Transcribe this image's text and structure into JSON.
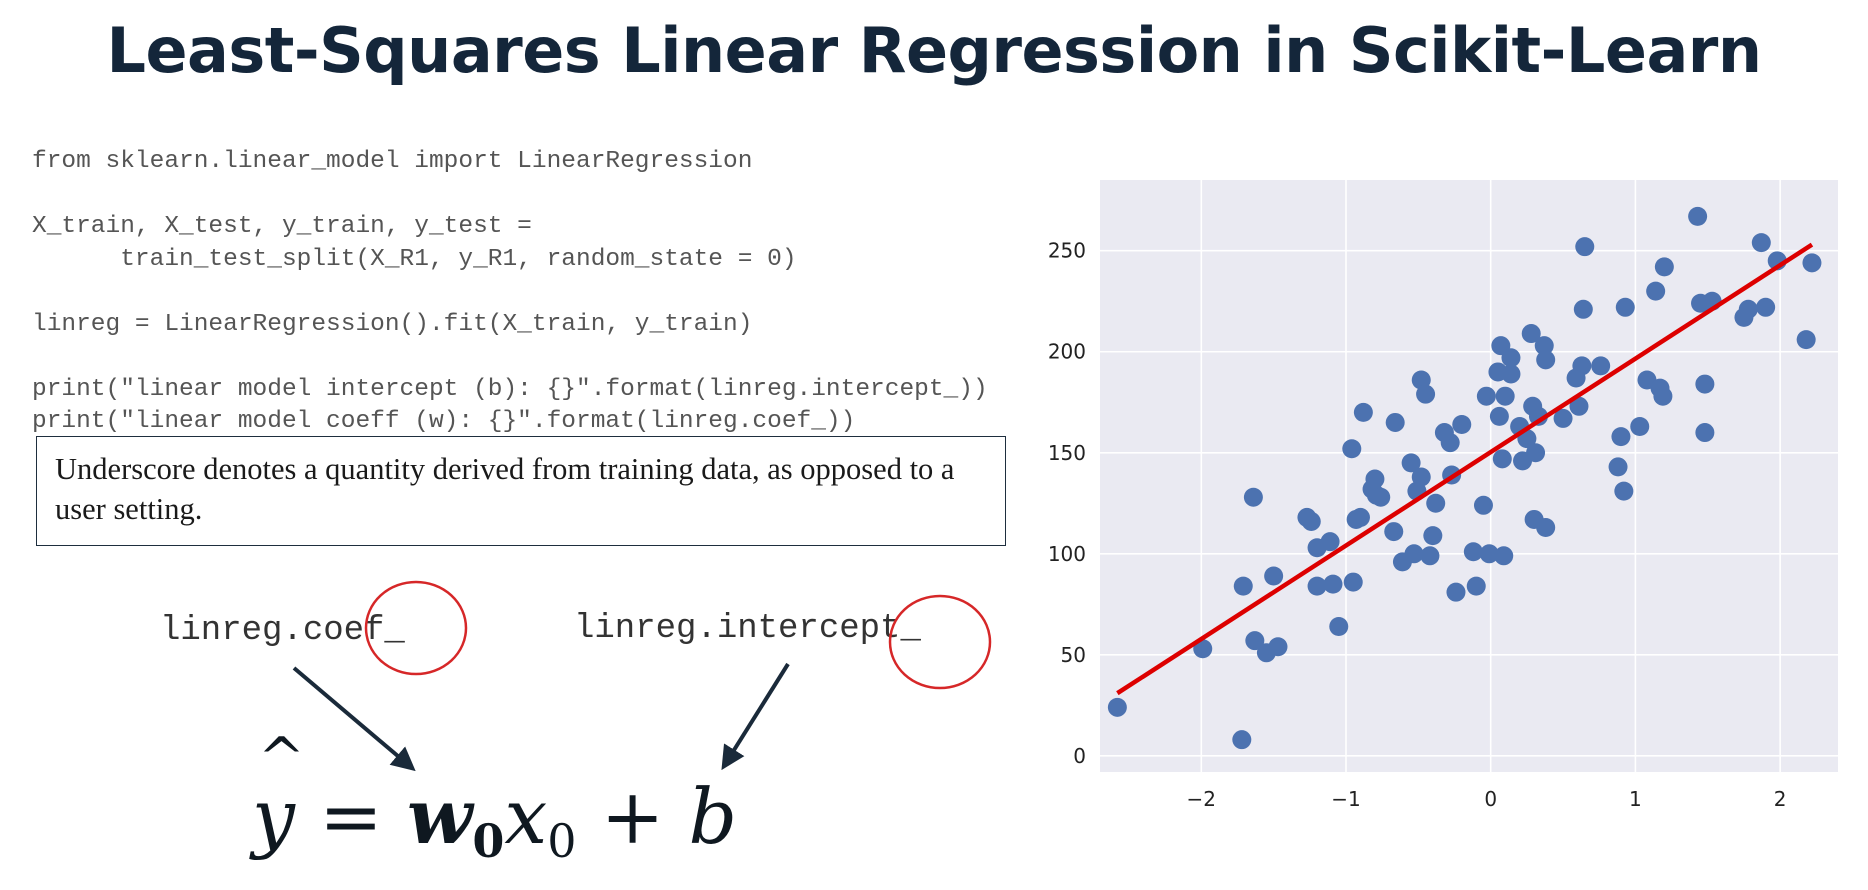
{
  "slide": {
    "title": "Least-Squares Linear Regression in Scikit-Learn",
    "code_lines": [
      "from sklearn.linear_model import LinearRegression",
      "",
      "X_train, X_test, y_train, y_test =",
      "      train_test_split(X_R1, y_R1, random_state = 0)",
      "",
      "linreg = LinearRegression().fit(X_train, y_train)",
      "",
      "print(\"linear model intercept (b): {}\".format(linreg.intercept_))",
      "print(\"linear model coeff (w): {}\".format(linreg.coef_))"
    ],
    "note": "Underscore denotes a quantity derived from training data, as opposed to a user setting.",
    "coef_label": "linreg.coef_",
    "intercept_label": "linreg.intercept_",
    "formula": {
      "y": "y",
      "hat": "^",
      "equals": " = ",
      "w": "w",
      "w_sub": "0",
      "x": "x",
      "x_sub": "0",
      "plus": " + ",
      "b": "b"
    },
    "colors": {
      "title": "#14263a",
      "points": "#4c72b0",
      "fit_line": "#dd0000",
      "plot_background": "#eaeaf2",
      "highlight_circle": "#d62728",
      "arrow": "#1a2a3a"
    }
  },
  "chart_data": {
    "type": "scatter",
    "title": "",
    "xlabel": "",
    "ylabel": "",
    "xlim": [
      -2.7,
      2.4
    ],
    "ylim": [
      -8,
      285
    ],
    "x_ticks": [
      -2,
      -1,
      0,
      1,
      2
    ],
    "y_ticks": [
      0,
      50,
      100,
      150,
      200,
      250
    ],
    "grid": true,
    "legend": "none",
    "points": [
      [
        -2.58,
        24
      ],
      [
        -1.99,
        53
      ],
      [
        -1.72,
        8
      ],
      [
        -1.71,
        84
      ],
      [
        -1.64,
        128
      ],
      [
        -1.63,
        57
      ],
      [
        -1.55,
        51
      ],
      [
        -1.47,
        54
      ],
      [
        -1.5,
        89
      ],
      [
        -1.27,
        118
      ],
      [
        -1.24,
        116
      ],
      [
        -1.2,
        103
      ],
      [
        -1.2,
        84
      ],
      [
        -1.11,
        106
      ],
      [
        -1.09,
        85
      ],
      [
        -1.05,
        64
      ],
      [
        -0.95,
        86
      ],
      [
        -0.96,
        152
      ],
      [
        -0.93,
        117
      ],
      [
        -0.9,
        118
      ],
      [
        -0.88,
        170
      ],
      [
        -0.82,
        132
      ],
      [
        -0.8,
        137
      ],
      [
        -0.79,
        129
      ],
      [
        -0.76,
        128
      ],
      [
        -0.66,
        165
      ],
      [
        -0.67,
        111
      ],
      [
        -0.61,
        96
      ],
      [
        -0.55,
        145
      ],
      [
        -0.53,
        100
      ],
      [
        -0.51,
        131
      ],
      [
        -0.48,
        138
      ],
      [
        -0.48,
        186
      ],
      [
        -0.45,
        179
      ],
      [
        -0.42,
        99
      ],
      [
        -0.4,
        109
      ],
      [
        -0.38,
        125
      ],
      [
        -0.32,
        160
      ],
      [
        -0.28,
        155
      ],
      [
        -0.27,
        139
      ],
      [
        -0.24,
        81
      ],
      [
        -0.2,
        164
      ],
      [
        -0.12,
        101
      ],
      [
        -0.1,
        84
      ],
      [
        -0.05,
        124
      ],
      [
        -0.03,
        178
      ],
      [
        -0.01,
        100
      ],
      [
        0.05,
        190
      ],
      [
        0.06,
        168
      ],
      [
        0.07,
        203
      ],
      [
        0.08,
        147
      ],
      [
        0.09,
        99
      ],
      [
        0.1,
        178
      ],
      [
        0.14,
        189
      ],
      [
        0.14,
        197
      ],
      [
        0.2,
        163
      ],
      [
        0.22,
        146
      ],
      [
        0.25,
        157
      ],
      [
        0.28,
        209
      ],
      [
        0.29,
        173
      ],
      [
        0.3,
        117
      ],
      [
        0.31,
        150
      ],
      [
        0.33,
        168
      ],
      [
        0.37,
        203
      ],
      [
        0.38,
        196
      ],
      [
        0.38,
        113
      ],
      [
        0.5,
        167
      ],
      [
        0.59,
        187
      ],
      [
        0.61,
        173
      ],
      [
        0.63,
        193
      ],
      [
        0.64,
        221
      ],
      [
        0.65,
        252
      ],
      [
        0.76,
        193
      ],
      [
        0.88,
        143
      ],
      [
        0.9,
        158
      ],
      [
        0.92,
        131
      ],
      [
        0.93,
        222
      ],
      [
        1.03,
        163
      ],
      [
        1.08,
        186
      ],
      [
        1.14,
        230
      ],
      [
        1.17,
        182
      ],
      [
        1.19,
        178
      ],
      [
        1.2,
        242
      ],
      [
        1.43,
        267
      ],
      [
        1.45,
        224
      ],
      [
        1.48,
        160
      ],
      [
        1.48,
        184
      ],
      [
        1.53,
        225
      ],
      [
        1.75,
        217
      ],
      [
        1.78,
        221
      ],
      [
        1.87,
        254
      ],
      [
        1.9,
        222
      ],
      [
        1.98,
        245
      ],
      [
        2.18,
        206
      ],
      [
        2.22,
        244
      ]
    ],
    "fit_line": {
      "x": [
        -2.58,
        2.22
      ],
      "y": [
        31,
        253
      ]
    }
  }
}
